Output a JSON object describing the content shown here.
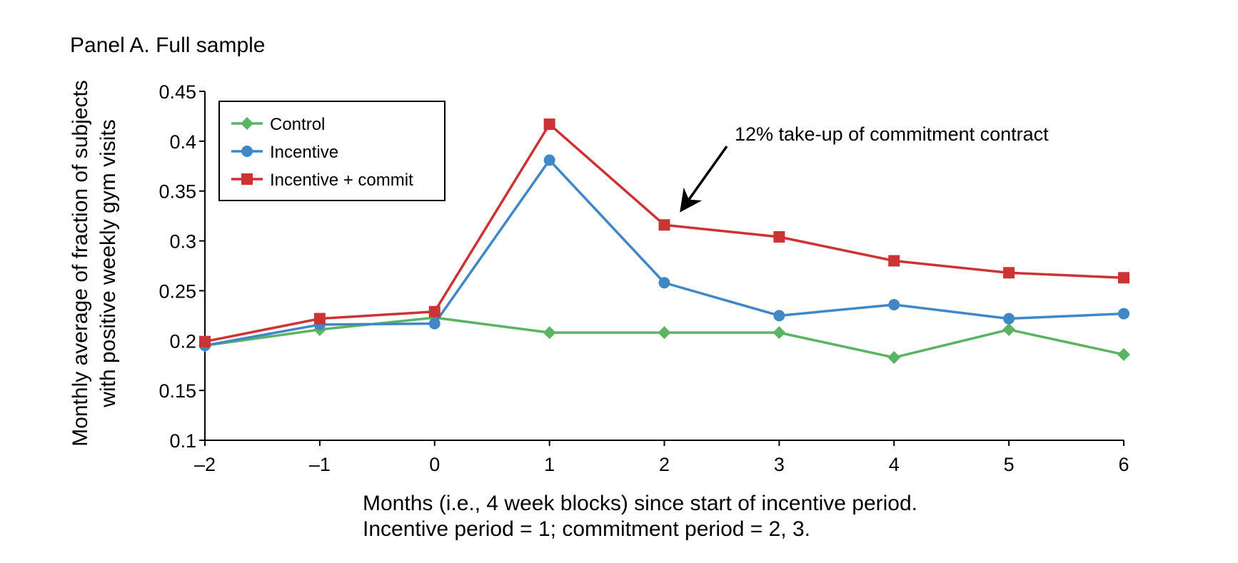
{
  "chart_data": {
    "type": "line",
    "title": "Panel A. Full sample",
    "ylabel_lines": [
      "Monthly average of fraction of subjects",
      "with positive weekly gym visits"
    ],
    "xlabel_lines": [
      "Months (i.e., 4 week blocks) since start of incentive period.",
      "Incentive period = 1; commitment period = 2, 3."
    ],
    "x": [
      -2,
      -1,
      0,
      1,
      2,
      3,
      4,
      5,
      6
    ],
    "x_tick_labels": [
      "–2",
      "–1",
      "0",
      "1",
      "2",
      "3",
      "4",
      "5",
      "6"
    ],
    "ylim": [
      0.1,
      0.45
    ],
    "y_ticks": [
      0.1,
      0.15,
      0.2,
      0.25,
      0.3,
      0.35,
      0.4,
      0.45
    ],
    "y_tick_labels": [
      "0.1",
      "0.15",
      "0.2",
      "0.25",
      "0.3",
      "0.35",
      "0.4",
      "0.45"
    ],
    "grid": false,
    "legend_position": "top-left",
    "series": [
      {
        "name": "Control",
        "marker": "diamond",
        "color": "#5bb462",
        "values": [
          0.195,
          0.211,
          0.223,
          0.208,
          0.208,
          0.208,
          0.183,
          0.211,
          0.186
        ]
      },
      {
        "name": "Incentive",
        "marker": "circle",
        "color": "#3f88c5",
        "values": [
          0.195,
          0.216,
          0.217,
          0.381,
          0.258,
          0.225,
          0.236,
          0.222,
          0.227
        ]
      },
      {
        "name": "Incentive + commit",
        "marker": "square",
        "color": "#cc3333",
        "values": [
          0.199,
          0.222,
          0.229,
          0.417,
          0.316,
          0.304,
          0.28,
          0.268,
          0.263
        ]
      }
    ],
    "annotation": {
      "text": "12% take-up of commitment contract",
      "points_to": {
        "x": 2,
        "series": "Incentive + commit"
      }
    }
  }
}
